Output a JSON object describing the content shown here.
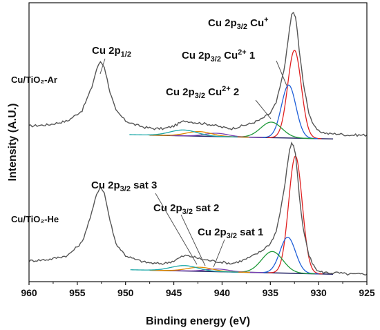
{
  "chart_data": {
    "type": "line",
    "xlabel": "Binding energy (eV)",
    "ylabel": "Intensity (A.U.)",
    "xlim": [
      960,
      925
    ],
    "x_reversed": true,
    "x_ticks": [
      960,
      955,
      950,
      945,
      940,
      935,
      930,
      925
    ],
    "y_ticks_shown": false,
    "grid": false,
    "samples": [
      {
        "label": "Cu/TiO₂-Ar",
        "raw": {
          "name": "experimental",
          "color": "#555555",
          "x": [
            960,
            958,
            956,
            954.5,
            953.5,
            953,
            952.6,
            952.2,
            951.6,
            951,
            950,
            949,
            948,
            947,
            946,
            945,
            944.2,
            943.8,
            943,
            942,
            941,
            940,
            939,
            938,
            937,
            936,
            935,
            934.4,
            934,
            933.6,
            933.3,
            933,
            932.8,
            932.6,
            932.4,
            932.2,
            932,
            931.6,
            931,
            930.5,
            930,
            929,
            928,
            927,
            926,
            925
          ],
          "y": [
            0.12,
            0.13,
            0.16,
            0.24,
            0.42,
            0.56,
            0.62,
            0.58,
            0.38,
            0.24,
            0.16,
            0.13,
            0.11,
            0.1,
            0.1,
            0.12,
            0.15,
            0.16,
            0.15,
            0.14,
            0.13,
            0.11,
            0.1,
            0.12,
            0.14,
            0.17,
            0.22,
            0.3,
            0.42,
            0.55,
            0.7,
            0.88,
            0.98,
            1.0,
            0.96,
            0.86,
            0.7,
            0.46,
            0.22,
            0.12,
            0.08,
            0.06,
            0.06,
            0.05,
            0.05,
            0.05
          ]
        },
        "components": [
          {
            "name": "Cu 2p3/2 Cu+",
            "color": "#e02020",
            "center": 932.5,
            "amplitude": 0.68,
            "sigma": 0.7
          },
          {
            "name": "Cu 2p3/2 Cu2+ 1",
            "color": "#1f5fd8",
            "center": 933.1,
            "amplitude": 0.41,
            "sigma": 0.75
          },
          {
            "name": "Cu 2p3/2 Cu2+ 2",
            "color": "#1f9a3a",
            "center": 934.9,
            "amplitude": 0.12,
            "sigma": 1.1
          },
          {
            "name": "Cu 2p3/2 sat 1",
            "color": "#7a3fb0",
            "center": 940.6,
            "amplitude": 0.025,
            "sigma": 1.2
          },
          {
            "name": "Cu 2p3/2 sat 2",
            "color": "#e08a00",
            "center": 942.4,
            "amplitude": 0.035,
            "sigma": 1.3
          },
          {
            "name": "Cu 2p3/2 sat 3",
            "color": "#1aa7a7",
            "center": 944.0,
            "amplitude": 0.045,
            "sigma": 1.4
          }
        ],
        "background": {
          "name": "background",
          "color": "#2b2b6b",
          "x_start": 947.5,
          "x_end": 928.5,
          "y_start": 0.05,
          "y_end": 0.02
        }
      },
      {
        "label": "Cu/TiO₂-He",
        "raw": {
          "name": "experimental",
          "color": "#555555",
          "x": [
            960,
            958,
            956,
            954.5,
            953.5,
            953,
            952.6,
            952.2,
            951.6,
            951,
            950,
            949,
            948,
            947,
            946,
            945,
            944.2,
            943.8,
            943,
            942,
            941,
            940,
            939,
            938,
            937,
            936,
            935,
            934.4,
            934,
            933.6,
            933.3,
            933,
            932.8,
            932.6,
            932.4,
            932.2,
            932,
            931.6,
            931,
            930.5,
            930,
            929,
            928,
            927,
            926,
            925
          ],
          "y": [
            0.12,
            0.13,
            0.16,
            0.26,
            0.48,
            0.62,
            0.68,
            0.63,
            0.42,
            0.25,
            0.16,
            0.13,
            0.11,
            0.1,
            0.1,
            0.12,
            0.15,
            0.16,
            0.15,
            0.13,
            0.12,
            0.11,
            0.1,
            0.12,
            0.15,
            0.19,
            0.25,
            0.34,
            0.48,
            0.64,
            0.8,
            0.96,
            1.0,
            0.99,
            0.92,
            0.78,
            0.6,
            0.36,
            0.16,
            0.08,
            0.04,
            0.03,
            0.03,
            0.02,
            0.02,
            0.02
          ]
        },
        "components": [
          {
            "name": "Cu 2p3/2 Cu+",
            "color": "#e02020",
            "center": 932.4,
            "amplitude": 0.88,
            "sigma": 0.7
          },
          {
            "name": "Cu 2p3/2 Cu2+ 1",
            "color": "#1f5fd8",
            "center": 933.2,
            "amplitude": 0.27,
            "sigma": 0.8
          },
          {
            "name": "Cu 2p3/2 Cu2+ 2",
            "color": "#1f9a3a",
            "center": 934.8,
            "amplitude": 0.16,
            "sigma": 1.1
          },
          {
            "name": "Cu 2p3/2 sat 1",
            "color": "#7a3fb0",
            "center": 940.5,
            "amplitude": 0.02,
            "sigma": 1.2
          },
          {
            "name": "Cu 2p3/2 sat 2",
            "color": "#e08a00",
            "center": 942.3,
            "amplitude": 0.03,
            "sigma": 1.3
          },
          {
            "name": "Cu 2p3/2 sat 3",
            "color": "#1aa7a7",
            "center": 943.9,
            "amplitude": 0.04,
            "sigma": 1.4
          }
        ],
        "background": {
          "name": "background",
          "color": "#2b2b6b",
          "x_start": 947.5,
          "x_end": 928.5,
          "y_start": 0.05,
          "y_end": 0.02
        }
      }
    ],
    "annotations": {
      "cu_2p12": {
        "base": "Cu 2p",
        "sub": "1/2",
        "tail": "",
        "sup": "",
        "after": ""
      },
      "cu_plus": {
        "base": "Cu 2p",
        "sub": "3/2",
        "tail": " Cu",
        "sup": "+",
        "after": ""
      },
      "cu2_1": {
        "base": "Cu 2p",
        "sub": "3/2",
        "tail": " Cu",
        "sup": "2+",
        "after": " 1"
      },
      "cu2_2": {
        "base": "Cu 2p",
        "sub": "3/2",
        "tail": " Cu",
        "sup": "2+",
        "after": " 2"
      },
      "sat3": {
        "base": "Cu 2p",
        "sub": "3/2",
        "tail": " sat 3",
        "sup": "",
        "after": ""
      },
      "sat2": {
        "base": "Cu 2p",
        "sub": "3/2",
        "tail": " sat 2",
        "sup": "",
        "after": ""
      },
      "sat1": {
        "base": "Cu 2p",
        "sub": "3/2",
        "tail": " sat 1",
        "sup": "",
        "after": ""
      }
    }
  }
}
